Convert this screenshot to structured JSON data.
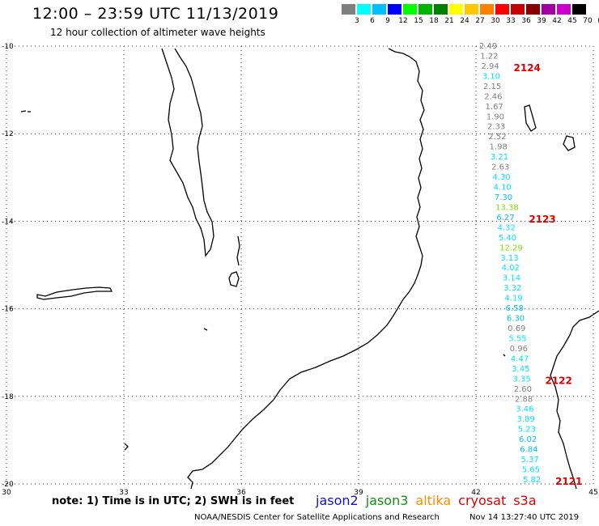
{
  "header": {
    "title": "12:00 – 23:59 UTC 11/13/2019",
    "subtitle": "12 hour collection of altimeter wave heights"
  },
  "color_scale": {
    "labels": [
      "3",
      "6",
      "9",
      "12",
      "15",
      "18",
      "21",
      "24",
      "27",
      "30",
      "33",
      "36",
      "39",
      "42",
      "45",
      "70",
      "(ft)"
    ],
    "colors": [
      "#7f7f7f",
      "#00ffff",
      "#00bfff",
      "#0000ff",
      "#00ff00",
      "#00b400",
      "#008000",
      "#ffff00",
      "#ffc800",
      "#ff8000",
      "#ff0000",
      "#c80000",
      "#8b0000",
      "#a000a0",
      "#cc00cc",
      "#000000"
    ]
  },
  "map": {
    "lat_labels": [
      "-10",
      "-12",
      "-14",
      "-16",
      "-18",
      "-20"
    ],
    "lon_labels": [
      "30",
      "33",
      "36",
      "39",
      "42",
      "45"
    ],
    "lat_range": [
      -20,
      -10
    ],
    "lon_range": [
      30,
      45
    ],
    "wave_heights": [
      {
        "v": "2.49",
        "c": "#7f7f7f"
      },
      {
        "v": "1.22",
        "c": "#7f7f7f"
      },
      {
        "v": "2.94",
        "c": "#7f7f7f"
      },
      {
        "v": "3.10",
        "c": "#00e5ff"
      },
      {
        "v": "2.15",
        "c": "#7f7f7f"
      },
      {
        "v": "2.46",
        "c": "#7f7f7f"
      },
      {
        "v": "1.67",
        "c": "#7f7f7f"
      },
      {
        "v": "1.90",
        "c": "#7f7f7f"
      },
      {
        "v": "2.33",
        "c": "#7f7f7f"
      },
      {
        "v": "2.52",
        "c": "#7f7f7f"
      },
      {
        "v": "1.98",
        "c": "#7f7f7f"
      },
      {
        "v": "3.21",
        "c": "#00e5ff"
      },
      {
        "v": "2.63",
        "c": "#7f7f7f"
      },
      {
        "v": "4.30",
        "c": "#00e5ff"
      },
      {
        "v": "4.10",
        "c": "#00e5ff"
      },
      {
        "v": "7.30",
        "c": "#00bfff"
      },
      {
        "v": "13.38",
        "c": "#7fe000"
      },
      {
        "v": "6.27",
        "c": "#00bfff"
      },
      {
        "v": "4.32",
        "c": "#00e5ff"
      },
      {
        "v": "5.40",
        "c": "#00e5ff"
      },
      {
        "v": "12.29",
        "c": "#7fe000"
      },
      {
        "v": "3.13",
        "c": "#00e5ff"
      },
      {
        "v": "4.02",
        "c": "#00e5ff"
      },
      {
        "v": "3.14",
        "c": "#00e5ff"
      },
      {
        "v": "3.32",
        "c": "#00e5ff"
      },
      {
        "v": "4.19",
        "c": "#00e5ff"
      },
      {
        "v": "6.58",
        "c": "#00bfff"
      },
      {
        "v": "6.30",
        "c": "#00bfff"
      },
      {
        "v": "0.69",
        "c": "#7f7f7f"
      },
      {
        "v": "5.55",
        "c": "#00e5ff"
      },
      {
        "v": "0.96",
        "c": "#7f7f7f"
      },
      {
        "v": "4.47",
        "c": "#00e5ff"
      },
      {
        "v": "3.45",
        "c": "#00e5ff"
      },
      {
        "v": "3.35",
        "c": "#00e5ff"
      },
      {
        "v": "2.60",
        "c": "#7f7f7f"
      },
      {
        "v": "2.88",
        "c": "#7f7f7f"
      },
      {
        "v": "3.46",
        "c": "#00e5ff"
      },
      {
        "v": "3.89",
        "c": "#00e5ff"
      },
      {
        "v": "5.23",
        "c": "#00e5ff"
      },
      {
        "v": "6.02",
        "c": "#00bfff"
      },
      {
        "v": "6.84",
        "c": "#00bfff"
      },
      {
        "v": "5.37",
        "c": "#00e5ff"
      },
      {
        "v": "5.65",
        "c": "#00e5ff"
      },
      {
        "v": "5.82",
        "c": "#00e5ff"
      }
    ],
    "pass_ids": [
      "2124",
      "2123",
      "2122",
      "2121"
    ]
  },
  "footer": {
    "note": "note: 1) Time is in UTC; 2) SWH is in feet",
    "satellites": [
      {
        "name": "jason2",
        "color": "#1010d0"
      },
      {
        "name": "jason3",
        "color": "#109010"
      },
      {
        "name": "altika",
        "color": "#ff8c00"
      },
      {
        "name": "cryosat",
        "color": "#dd0000"
      },
      {
        "name": "s3a",
        "color": "#dd0000"
      }
    ],
    "credit": "NOAA/NESDIS Center for Satellite Applications and Research",
    "timestamp": "Nov 14 13:27:40 UTC 2019"
  }
}
